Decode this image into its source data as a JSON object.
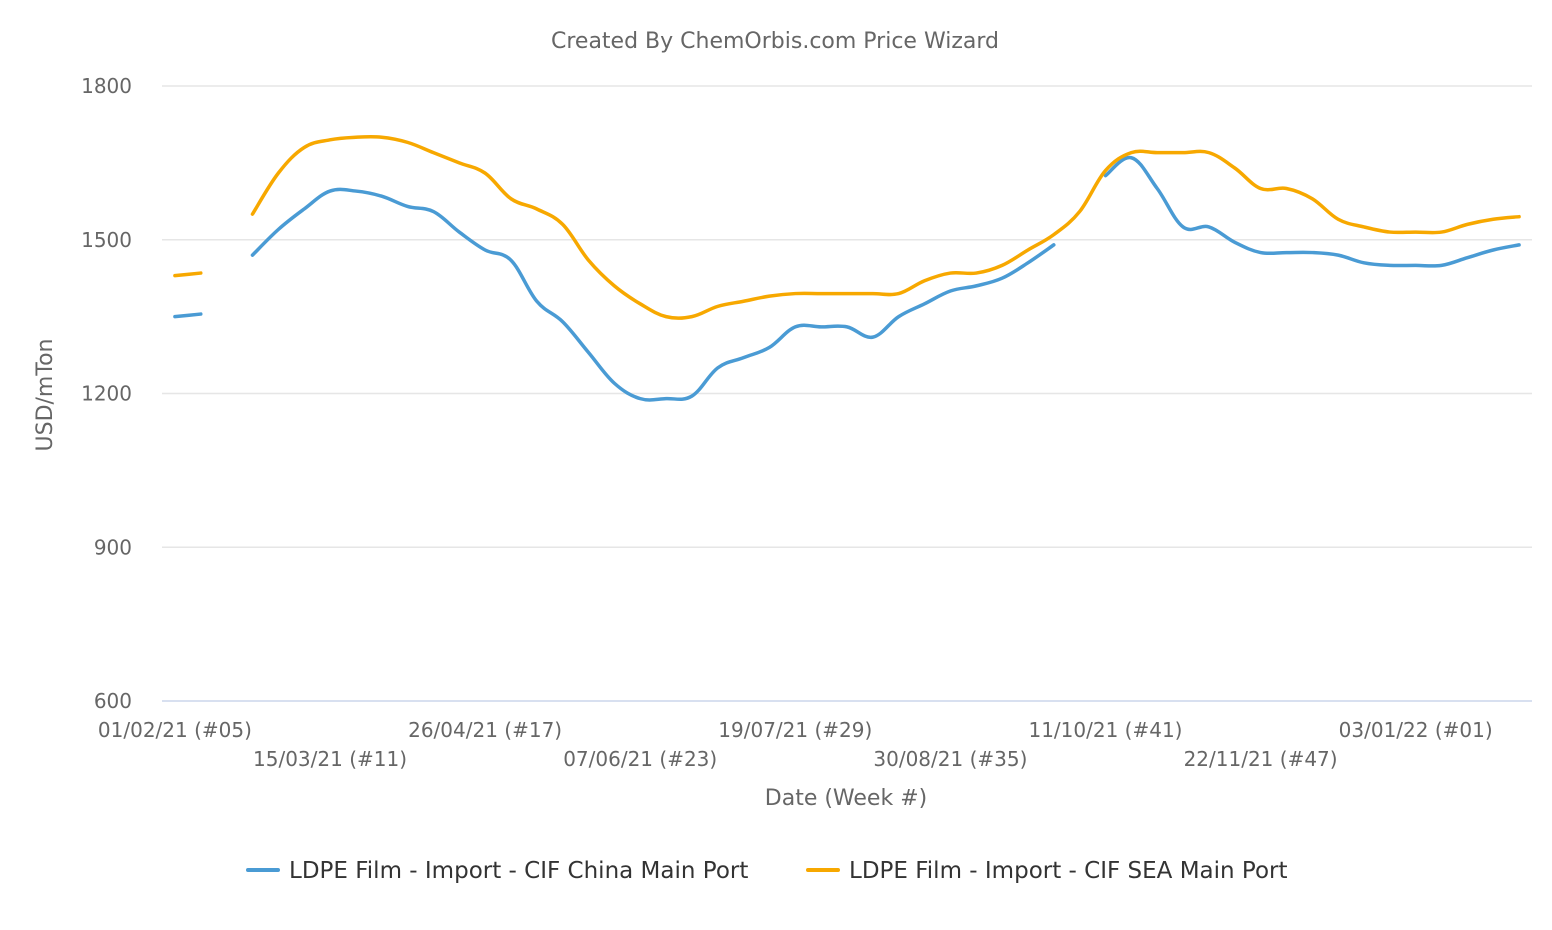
{
  "chart_data": {
    "type": "line",
    "title": "Created By ChemOrbis.com Price Wizard",
    "xlabel": "Date (Week #)",
    "ylabel": "USD/mTon",
    "ylim": [
      600,
      1800
    ],
    "yticks": [
      600,
      900,
      1200,
      1500,
      1800
    ],
    "x": [
      5,
      6,
      7,
      8,
      9,
      10,
      11,
      12,
      13,
      14,
      15,
      16,
      17,
      18,
      19,
      20,
      21,
      22,
      23,
      24,
      25,
      26,
      27,
      28,
      29,
      30,
      31,
      32,
      33,
      34,
      35,
      36,
      37,
      38,
      39,
      40,
      41,
      42,
      43,
      44,
      45,
      46,
      47,
      48,
      49,
      50,
      51,
      52,
      53,
      54,
      55,
      56,
      57
    ],
    "x_ticks": [
      {
        "x": 5,
        "label": "01/02/21 (#05)"
      },
      {
        "x": 11,
        "label": "15/03/21 (#11)"
      },
      {
        "x": 17,
        "label": "26/04/21 (#17)"
      },
      {
        "x": 23,
        "label": "07/06/21 (#23)"
      },
      {
        "x": 29,
        "label": "19/07/21 (#29)"
      },
      {
        "x": 35,
        "label": "30/08/21 (#35)"
      },
      {
        "x": 41,
        "label": "11/10/21 (#41)"
      },
      {
        "x": 47,
        "label": "22/11/21 (#47)"
      },
      {
        "x": 53,
        "label": "03/01/22 (#01)"
      }
    ],
    "series": [
      {
        "name": "LDPE Film - Import - CIF China Main Port",
        "color": "#4a9bd4",
        "values": [
          1350,
          1355,
          null,
          1470,
          1520,
          1560,
          1595,
          1595,
          1585,
          1565,
          1555,
          1515,
          1480,
          1460,
          1380,
          1340,
          1280,
          1220,
          1190,
          1190,
          1195,
          1250,
          1270,
          1290,
          1330,
          1330,
          1330,
          1310,
          1350,
          1375,
          1400,
          1410,
          1425,
          1455,
          1490,
          null,
          1625,
          1660,
          1600,
          1525,
          1525,
          1495,
          1475,
          1475,
          1475,
          1470,
          1455,
          1450,
          1450,
          1450,
          1465,
          1480,
          1490
        ]
      },
      {
        "name": "LDPE Film - Import - CIF SEA Main Port",
        "color": "#f7a800",
        "values": [
          1430,
          1435,
          null,
          1550,
          1630,
          1680,
          1695,
          1700,
          1700,
          1690,
          1670,
          1650,
          1630,
          1580,
          1560,
          1530,
          1460,
          1410,
          1375,
          1350,
          1350,
          1370,
          1380,
          1390,
          1395,
          1395,
          1395,
          1395,
          1395,
          1420,
          1435,
          1435,
          1450,
          1480,
          1510,
          1555,
          1635,
          1670,
          1670,
          1670,
          1670,
          1640,
          1600,
          1600,
          1580,
          1540,
          1525,
          1515,
          1515,
          1515,
          1530,
          1540,
          1545
        ]
      }
    ],
    "legend_position": "bottom"
  }
}
